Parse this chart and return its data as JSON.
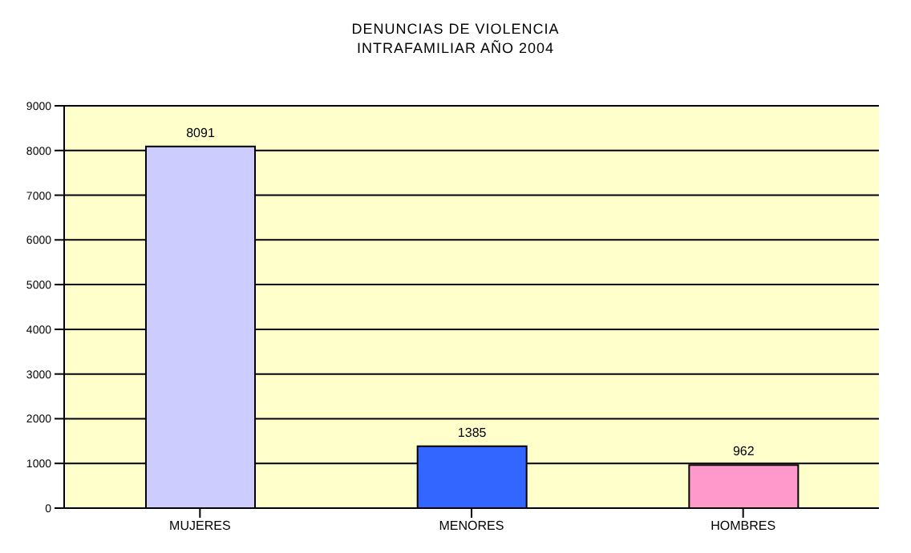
{
  "chart_data": {
    "type": "bar",
    "title": "DENUNCIAS DE VIOLENCIA\nINTRAFAMILIAR AÑO 2004",
    "categories": [
      "MUJERES",
      "MENORES",
      "HOMBRES"
    ],
    "values": [
      8091,
      1385,
      962
    ],
    "colors": [
      "#ccccff",
      "#3366ff",
      "#ff99cc"
    ],
    "ylim": [
      0,
      9000
    ],
    "yticks": [
      0,
      1000,
      2000,
      3000,
      4000,
      5000,
      6000,
      7000,
      8000,
      9000
    ],
    "grid": "y",
    "data_labels": true,
    "legend": false
  }
}
